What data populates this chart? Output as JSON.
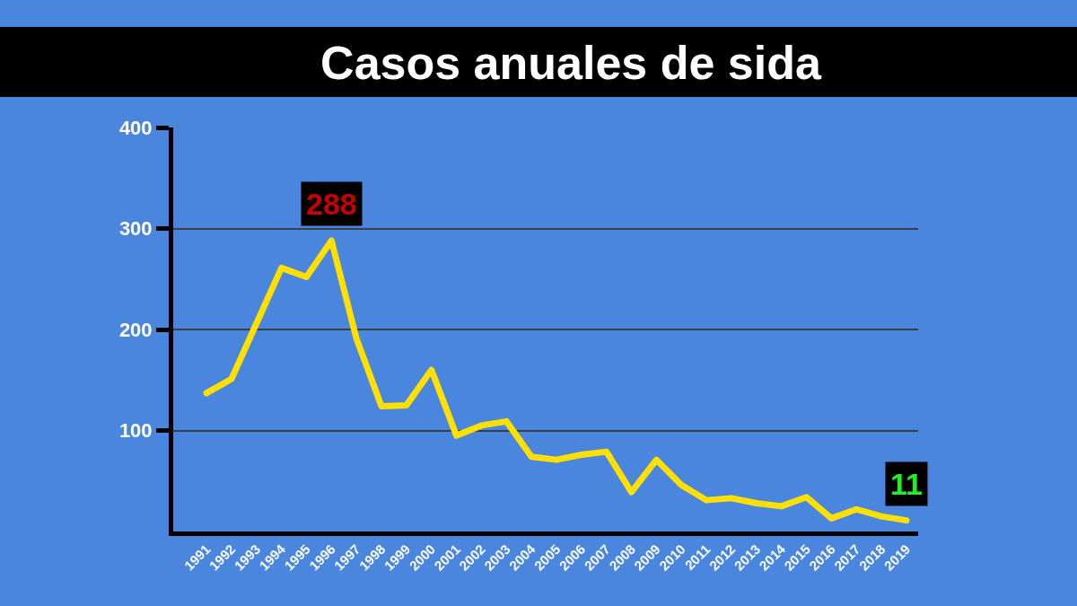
{
  "chart_data": {
    "type": "line",
    "title": "Casos anuales de sida",
    "categories": [
      "1991",
      "1992",
      "1993",
      "1994",
      "1995",
      "1996",
      "1997",
      "1998",
      "1999",
      "2000",
      "2001",
      "2002",
      "2003",
      "2004",
      "2005",
      "2006",
      "2007",
      "2008",
      "2009",
      "2010",
      "2011",
      "2012",
      "2013",
      "2014",
      "2015",
      "2016",
      "2017",
      "2018",
      "2019"
    ],
    "series": [
      {
        "color": "#ffe000",
        "values": [
          137,
          151,
          206,
          261,
          252,
          288,
          191,
          124,
          125,
          160,
          95,
          105,
          109,
          74,
          71,
          76,
          79,
          39,
          71,
          46,
          31,
          33,
          28,
          25,
          34,
          13,
          22,
          15,
          11
        ],
        "value_labels": [
          null,
          null,
          null,
          null,
          null,
          "288",
          null,
          null,
          null,
          null,
          null,
          null,
          null,
          null,
          null,
          null,
          null,
          null,
          null,
          null,
          null,
          null,
          null,
          null,
          null,
          null,
          null,
          null,
          "11"
        ]
      }
    ],
    "ylim": [
      0,
      400
    ],
    "yticks": [
      100,
      200,
      300,
      400
    ],
    "grid": "y",
    "line_style": "solid"
  }
}
